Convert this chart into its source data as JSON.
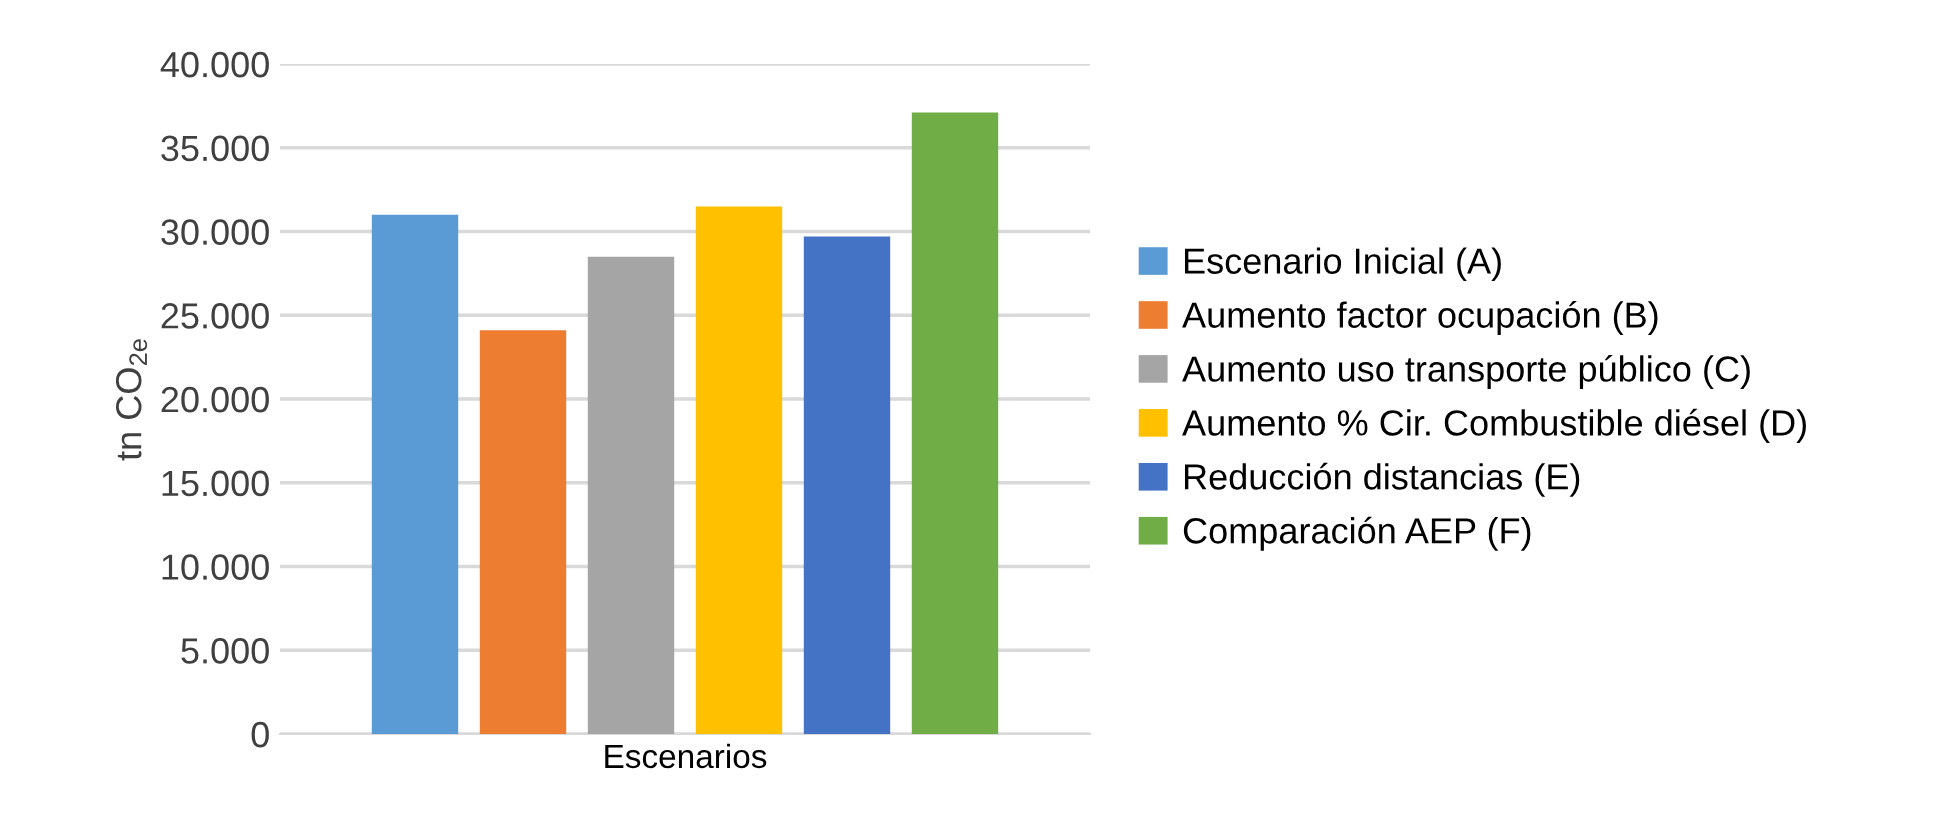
{
  "chart_data": {
    "type": "bar",
    "ylabel": "tn CO$_{2e}$",
    "categories": [
      "Escenarios"
    ],
    "series": [
      {
        "name": "Escenario Inicial (A)",
        "color": "#5b9bd5",
        "values": [
          31000
        ]
      },
      {
        "name": "Aumento factor ocupación (B)",
        "color": "#ed7d31",
        "values": [
          24100
        ]
      },
      {
        "name": "Aumento uso transporte público (C)",
        "color": "#a5a5a5",
        "values": [
          28500
        ]
      },
      {
        "name": "Aumento % Cir. Combustible diésel (D)",
        "color": "#ffc000",
        "values": [
          31500
        ]
      },
      {
        "name": "Reducción distancias (E)",
        "color": "#4472c4",
        "values": [
          29700
        ]
      },
      {
        "name": "Comparación AEP (F)",
        "color": "#70ad47",
        "values": [
          37100
        ]
      }
    ],
    "ylim": [
      0,
      40000
    ],
    "yticks": [
      0,
      {
        "value": 5000,
        "label": "5.000"
      },
      {
        "value": 10000,
        "label": "10.000"
      },
      {
        "value": 15000,
        "label": "15.000"
      },
      {
        "value": 20000,
        "label": "20.000"
      },
      {
        "value": 25000,
        "label": "25.000"
      },
      {
        "value": 30000,
        "label": "30.000"
      },
      {
        "value": 35000,
        "label": "35.000"
      },
      {
        "value": 40000,
        "label": "40.000"
      }
    ],
    "grid": "y",
    "legend": "right"
  }
}
